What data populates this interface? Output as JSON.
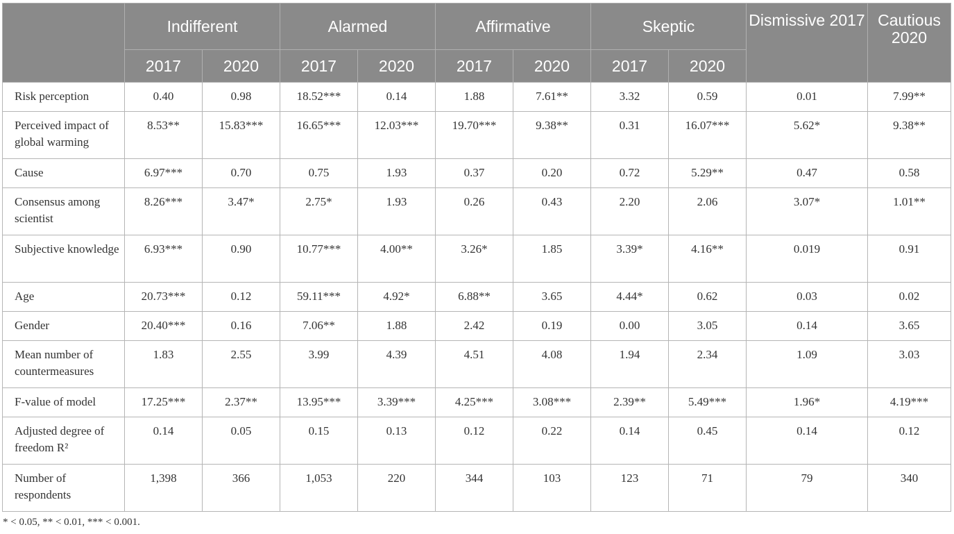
{
  "header": {
    "groups": [
      "Indifferent",
      "Alarmed",
      "Affirmative",
      "Skeptic"
    ],
    "years": [
      "2017",
      "2020"
    ],
    "singles": [
      "Dismissive 2017",
      "Cautious 2020"
    ]
  },
  "rows": [
    {
      "label": "Risk perception",
      "values": [
        "0.40",
        "0.98",
        "18.52***",
        "0.14",
        "1.88",
        "7.61**",
        "3.32",
        "0.59",
        "0.01",
        "7.99**"
      ]
    },
    {
      "label": "Perceived impact of global warming",
      "values": [
        "8.53**",
        "15.83***",
        "16.65***",
        "12.03***",
        "19.70***",
        "9.38**",
        "0.31",
        "16.07***",
        "5.62*",
        "9.38**"
      ]
    },
    {
      "label": "Cause",
      "values": [
        "6.97***",
        "0.70",
        "0.75",
        "1.93",
        "0.37",
        "0.20",
        "0.72",
        "5.29**",
        "0.47",
        "0.58"
      ]
    },
    {
      "label": "Consensus among scientist",
      "values": [
        "8.26***",
        "3.47*",
        "2.75*",
        "1.93",
        "0.26",
        "0.43",
        "2.20",
        "2.06",
        "3.07*",
        "1.01**"
      ]
    },
    {
      "label": "Subjective knowledge",
      "values": [
        "6.93***",
        "0.90",
        "10.77***",
        "4.00**",
        "3.26*",
        "1.85",
        "3.39*",
        "4.16**",
        "0.019",
        "0.91"
      ]
    },
    {
      "label": "Age",
      "values": [
        "20.73***",
        "0.12",
        "59.11***",
        "4.92*",
        "6.88**",
        "3.65",
        "4.44*",
        "0.62",
        "0.03",
        "0.02"
      ]
    },
    {
      "label": "Gender",
      "values": [
        "20.40***",
        "0.16",
        "7.06**",
        "1.88",
        "2.42",
        "0.19",
        "0.00",
        "3.05",
        "0.14",
        "3.65"
      ]
    },
    {
      "label": "Mean number of countermeasures",
      "values": [
        "1.83",
        "2.55",
        "3.99",
        "4.39",
        "4.51",
        "4.08",
        "1.94",
        "2.34",
        "1.09",
        "3.03"
      ]
    },
    {
      "label": "F-value of model",
      "values": [
        "17.25***",
        "2.37**",
        "13.95***",
        "3.39***",
        "4.25***",
        "3.08***",
        "2.39**",
        "5.49***",
        "1.96*",
        "4.19***"
      ]
    },
    {
      "label": "Adjusted degree of freedom R²",
      "values": [
        "0.14",
        "0.05",
        "0.15",
        "0.13",
        "0.12",
        "0.22",
        "0.14",
        "0.45",
        "0.14",
        "0.12"
      ]
    },
    {
      "label": "Number of respondents",
      "values": [
        "1,398",
        "366",
        "1,053",
        "220",
        "344",
        "103",
        "123",
        "71",
        "79",
        "340"
      ]
    }
  ],
  "footnote": "* < 0.05, ** < 0.01, *** < 0.001."
}
